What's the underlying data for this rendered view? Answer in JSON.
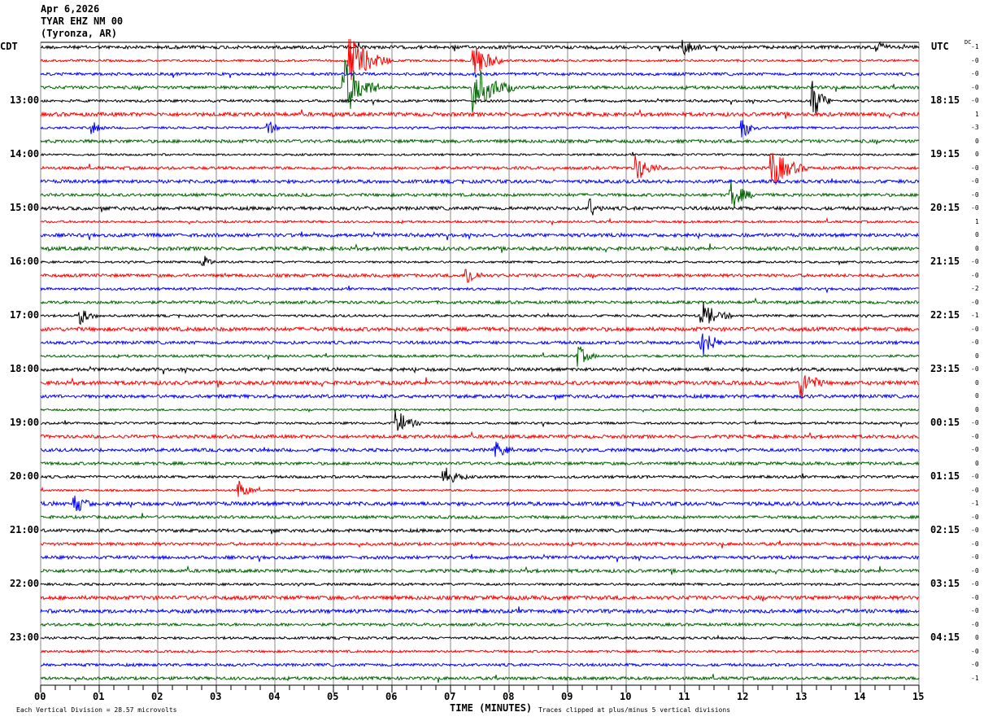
{
  "header": {
    "date": "Apr 6,2026",
    "station": "TYAR EHZ NM 00",
    "location": "(Tyronza, AR)"
  },
  "left_tz": "CDT",
  "right_tz": "UTC",
  "dc_label": "DC",
  "chart_data": {
    "type": "line",
    "title": "",
    "xlabel": "TIME (MINUTES)",
    "xlim": [
      0,
      15
    ],
    "x_ticks": [
      "00",
      "01",
      "02",
      "03",
      "04",
      "05",
      "06",
      "07",
      "08",
      "09",
      "10",
      "11",
      "12",
      "13",
      "14",
      "15"
    ],
    "rows": 48,
    "row_minutes": 15,
    "trace_colors": [
      "#000000",
      "#ff0000",
      "#0000ff",
      "#006400"
    ],
    "left_hour_labels": [
      "13:00",
      "14:00",
      "15:00",
      "16:00",
      "17:00",
      "18:00",
      "19:00",
      "20:00",
      "21:00",
      "22:00",
      "23:00"
    ],
    "right_hour_labels": [
      "18:15",
      "19:15",
      "20:15",
      "21:15",
      "22:15",
      "23:15",
      "00:15",
      "01:15",
      "02:15",
      "03:15",
      "04:15"
    ],
    "dc_offsets": [
      "-1",
      "-0",
      "-0",
      "-0",
      "-0",
      "1",
      "-3",
      "0",
      "0",
      "-0",
      "-0",
      "-0",
      "-0",
      "1",
      "0",
      "0",
      "-0",
      "-0",
      "-2",
      "-0",
      "-1",
      "-0",
      "-0",
      "0",
      "-0",
      "0",
      "0",
      "0",
      "-0",
      "-0",
      "-0",
      "0",
      "-0",
      "-0",
      "-1",
      "-0",
      "-0",
      "-0",
      "-0",
      "-0",
      "-0",
      "-0",
      "-0",
      "-0",
      "0",
      "-0",
      "-0",
      "-1"
    ],
    "events": [
      [
        0,
        11,
        2,
        0.3
      ],
      [
        0,
        14.3,
        1.5,
        0.2
      ],
      [
        1,
        5.3,
        5,
        0.7
      ],
      [
        1,
        7.4,
        4,
        0.5
      ],
      [
        3,
        5.2,
        6,
        0.6
      ],
      [
        3,
        7.4,
        5,
        0.7
      ],
      [
        4,
        13.2,
        4,
        0.3
      ],
      [
        6,
        0.9,
        1.5,
        0.2
      ],
      [
        6,
        3.9,
        1.5,
        0.2
      ],
      [
        6,
        12,
        2,
        0.3
      ],
      [
        9,
        10.2,
        2.5,
        0.4
      ],
      [
        9,
        12.5,
        4,
        0.6
      ],
      [
        11,
        11.8,
        3,
        0.4
      ],
      [
        12,
        9.4,
        2,
        0.2
      ],
      [
        16,
        2.8,
        1.2,
        0.2
      ],
      [
        17,
        7.3,
        2,
        0.3
      ],
      [
        20,
        0.7,
        1.5,
        0.3
      ],
      [
        20,
        11.3,
        3,
        0.5
      ],
      [
        22,
        11.3,
        3,
        0.4
      ],
      [
        23,
        9.2,
        2,
        0.3
      ],
      [
        25,
        13,
        3,
        0.4
      ],
      [
        28,
        6.1,
        2.5,
        0.4
      ],
      [
        30,
        7.8,
        1.5,
        0.3
      ],
      [
        32,
        6.9,
        2,
        0.4
      ],
      [
        33,
        3.4,
        2,
        0.3
      ],
      [
        34,
        0.6,
        2,
        0.3
      ]
    ],
    "scale_note": "Each Vertical Division =   28.57 microvolts",
    "clip_note": "Traces clipped at plus/minus 5 vertical divisions"
  }
}
